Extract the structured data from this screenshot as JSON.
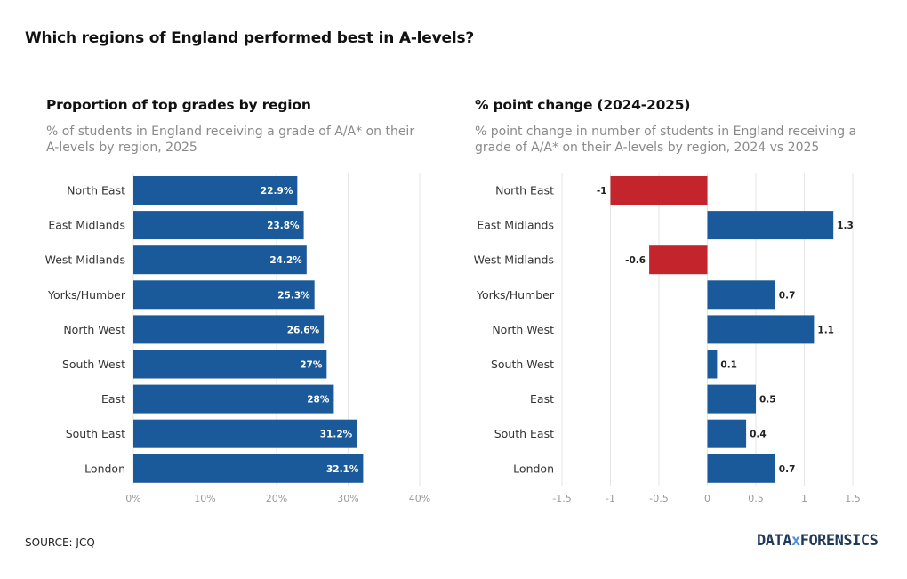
{
  "title": "Which regions of England performed best in A-levels?",
  "source": "SOURCE: JCQ",
  "logo": {
    "part1": "DATA",
    "sep": "x",
    "part2": "FORENSICS"
  },
  "colors": {
    "bar": "#1a5a9a",
    "negative": "#c4242c",
    "grid": "#e6e6e6",
    "tick": "#9a9a9a"
  },
  "chart_data": [
    {
      "type": "bar",
      "orientation": "horizontal",
      "title": "Proportion of top grades by region",
      "subtitle": "% of students in England receiving a grade of A/A* on their A-levels by region, 2025",
      "categories": [
        "North East",
        "East Midlands",
        "West Midlands",
        "Yorks/Humber",
        "North West",
        "South West",
        "East",
        "South East",
        "London"
      ],
      "values": [
        22.9,
        23.8,
        24.2,
        25.3,
        26.6,
        27,
        28,
        31.2,
        32.1
      ],
      "value_labels": [
        "22.9%",
        "23.8%",
        "24.2%",
        "25.3%",
        "26.6%",
        "27%",
        "28%",
        "31.2%",
        "32.1%"
      ],
      "xlim": [
        0,
        40
      ],
      "xticks": [
        0,
        10,
        20,
        30,
        40
      ],
      "xtick_labels": [
        "0%",
        "10%",
        "20%",
        "30%",
        "40%"
      ],
      "grid": true
    },
    {
      "type": "bar",
      "orientation": "horizontal",
      "title": "% point change (2024-2025)",
      "subtitle": "% point change in number of students in England receiving a grade of A/A* on their A-levels by region, 2024 vs 2025",
      "categories": [
        "North East",
        "East Midlands",
        "West Midlands",
        "Yorks/Humber",
        "North West",
        "South West",
        "East",
        "South East",
        "London"
      ],
      "values": [
        -1,
        1.3,
        -0.6,
        0.7,
        1.1,
        0.1,
        0.5,
        0.4,
        0.7
      ],
      "value_labels": [
        "-1",
        "1.3",
        "-0.6",
        "0.7",
        "1.1",
        "0.1",
        "0.5",
        "0.4",
        "0.7"
      ],
      "xlim": [
        -1.5,
        1.5
      ],
      "xticks": [
        -1.5,
        -1,
        -0.5,
        0,
        0.5,
        1,
        1.5
      ],
      "xtick_labels": [
        "-1.5",
        "-1",
        "-0.5",
        "0",
        "0.5",
        "1",
        "1.5"
      ],
      "grid": true
    }
  ]
}
